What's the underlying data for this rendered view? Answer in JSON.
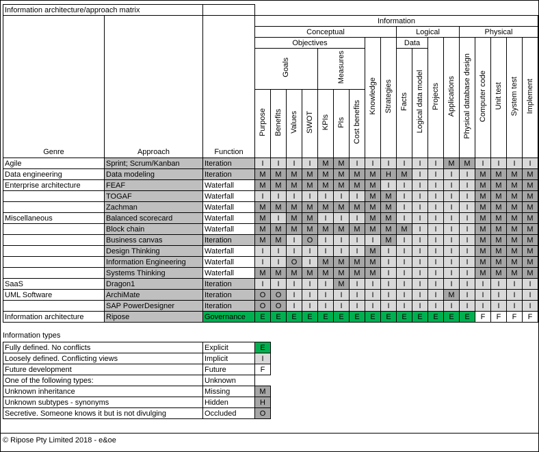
{
  "title": "Information architecture/approach matrix",
  "legend_title": "Information types",
  "footer": "© Ripose Pty Limited 2018 - e&oe",
  "colors": {
    "explicit_green": "#00B050",
    "implicit_light_gray": "#D9D9D9",
    "missing_gray": "#A6A6A6",
    "approach_gray": "#BFBFBF",
    "border_black": "#000000"
  },
  "matrix": {
    "corner": {
      "genre": "Genre",
      "approach": "Approach",
      "function": "Function"
    },
    "groups": {
      "information": "Information",
      "conceptual": "Conceptual",
      "logical": "Logical",
      "physical": "Physical",
      "objectives": "Objectives",
      "data": "Data",
      "goals": "Goals",
      "measures": "Measures"
    },
    "columns": [
      "Purpose",
      "Benefits",
      "Values",
      "SWOT",
      "KPIs",
      "PIs",
      "Cost benefits",
      "Knowledge",
      "Strategies",
      "Facts",
      "Logical data model",
      "Projects",
      "Applications",
      "Physical database design",
      "Computer code",
      "Unit test",
      "System test",
      "Implement"
    ],
    "rows": [
      {
        "genre": "Agile",
        "approach": "Sprint; Scrum/Kanban",
        "function": "Iteration",
        "values": [
          "I",
          "I",
          "I",
          "I",
          "M",
          "M",
          "I",
          "I",
          "I",
          "I",
          "I",
          "I",
          "M",
          "M",
          "I",
          "I",
          "I",
          "I"
        ]
      },
      {
        "genre": "Data engineering",
        "approach": "Data modeling",
        "function": "Iteration",
        "values": [
          "M",
          "M",
          "M",
          "M",
          "M",
          "M",
          "M",
          "M",
          "H",
          "M",
          "I",
          "I",
          "I",
          "I",
          "M",
          "M",
          "M",
          "M"
        ]
      },
      {
        "genre": "Enterprise architecture",
        "approach": "FEAF",
        "function": "Waterfall",
        "values": [
          "M",
          "M",
          "M",
          "M",
          "M",
          "M",
          "M",
          "M",
          "I",
          "I",
          "I",
          "I",
          "I",
          "I",
          "M",
          "M",
          "M",
          "M"
        ]
      },
      {
        "genre": "",
        "approach": "TOGAF",
        "function": "Waterfall",
        "values": [
          "I",
          "I",
          "I",
          "I",
          "I",
          "I",
          "I",
          "M",
          "M",
          "I",
          "I",
          "I",
          "I",
          "I",
          "M",
          "M",
          "M",
          "M"
        ]
      },
      {
        "genre": "",
        "approach": "Zachman",
        "function": "Waterfall",
        "values": [
          "M",
          "M",
          "M",
          "M",
          "M",
          "M",
          "M",
          "M",
          "M",
          "I",
          "I",
          "I",
          "I",
          "I",
          "M",
          "M",
          "M",
          "M"
        ]
      },
      {
        "genre": "Miscellaneous",
        "approach": "Balanced scorecard",
        "function": "Waterfall",
        "values": [
          "M",
          "I",
          "M",
          "M",
          "I",
          "I",
          "I",
          "M",
          "M",
          "I",
          "I",
          "I",
          "I",
          "I",
          "M",
          "M",
          "M",
          "M"
        ]
      },
      {
        "genre": "",
        "approach": "Block chain",
        "function": "Waterfall",
        "values": [
          "M",
          "M",
          "M",
          "M",
          "M",
          "M",
          "M",
          "M",
          "M",
          "M",
          "I",
          "I",
          "I",
          "I",
          "M",
          "M",
          "M",
          "M"
        ]
      },
      {
        "genre": "",
        "approach": "Business canvas",
        "function": "Iteration",
        "values": [
          "M",
          "M",
          "I",
          "O",
          "I",
          "I",
          "I",
          "I",
          "M",
          "I",
          "I",
          "I",
          "I",
          "I",
          "M",
          "M",
          "M",
          "M"
        ]
      },
      {
        "genre": "",
        "approach": "Design Thinking",
        "function": "Waterfall",
        "values": [
          "I",
          "I",
          "I",
          "I",
          "I",
          "I",
          "I",
          "M",
          "I",
          "I",
          "I",
          "I",
          "I",
          "I",
          "M",
          "M",
          "M",
          "M"
        ]
      },
      {
        "genre": "",
        "approach": "Information Engineering",
        "function": "Waterfall",
        "values": [
          "I",
          "I",
          "O",
          "I",
          "M",
          "M",
          "M",
          "M",
          "I",
          "I",
          "I",
          "I",
          "I",
          "I",
          "M",
          "M",
          "M",
          "M"
        ]
      },
      {
        "genre": "",
        "approach": "Systems Thinking",
        "function": "Waterfall",
        "values": [
          "M",
          "M",
          "M",
          "M",
          "M",
          "M",
          "M",
          "M",
          "I",
          "I",
          "I",
          "I",
          "I",
          "I",
          "M",
          "M",
          "M",
          "M"
        ]
      },
      {
        "genre": "SaaS",
        "approach": "Dragon1",
        "function": "Iteration",
        "values": [
          "I",
          "I",
          "I",
          "I",
          "I",
          "M",
          "I",
          "I",
          "I",
          "I",
          "I",
          "I",
          "I",
          "I",
          "I",
          "I",
          "I",
          "I"
        ]
      },
      {
        "genre": "UML Software",
        "approach": "ArchiMate",
        "function": "Iteration",
        "values": [
          "O",
          "O",
          "I",
          "I",
          "I",
          "I",
          "I",
          "I",
          "I",
          "I",
          "I",
          "I",
          "M",
          "I",
          "I",
          "I",
          "I",
          "I"
        ]
      },
      {
        "genre": "",
        "approach": "SAP PowerDesigner",
        "function": "Iteration",
        "values": [
          "O",
          "O",
          "I",
          "I",
          "I",
          "I",
          "I",
          "I",
          "I",
          "I",
          "I",
          "I",
          "I",
          "I",
          "I",
          "I",
          "I",
          "I"
        ]
      },
      {
        "genre": "Information architecture",
        "approach": "Ripose",
        "function": "Governance",
        "values": [
          "E",
          "E",
          "E",
          "E",
          "E",
          "E",
          "E",
          "E",
          "E",
          "E",
          "E",
          "E",
          "E",
          "E",
          "F",
          "F",
          "F",
          "F"
        ]
      }
    ]
  },
  "legend": {
    "rows": [
      {
        "description": "Fully defined. No conflicts",
        "label": "Explicit",
        "code": "E"
      },
      {
        "description": "Loosely defined. Conflicting views",
        "label": "Implicit",
        "code": "I"
      },
      {
        "description": "Future development",
        "label": "Future",
        "code": "F"
      },
      {
        "description": "One of the following types:",
        "label": "Unknown",
        "code": ""
      },
      {
        "description": "Unknown inheritance",
        "label": "Missing",
        "code": "M"
      },
      {
        "description": "Unknown subtypes - synonyms",
        "label": "Hidden",
        "code": "H"
      },
      {
        "description": "Secretive. Someone knows it but is not divulging",
        "label": "Occluded",
        "code": "O"
      }
    ]
  }
}
